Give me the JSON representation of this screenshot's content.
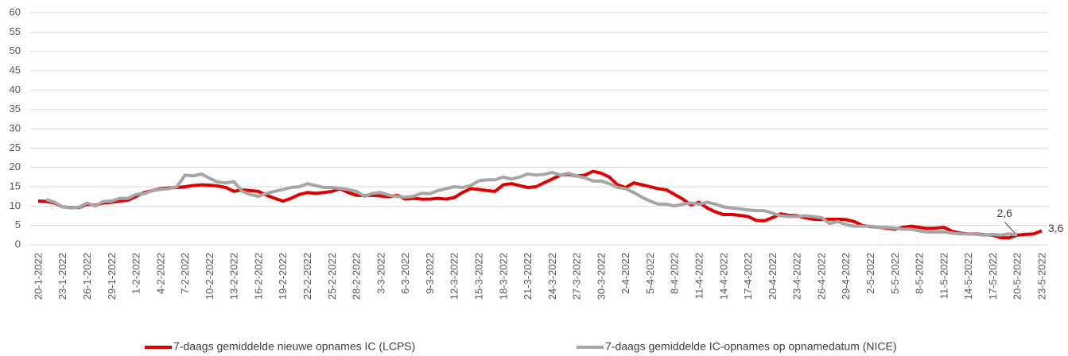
{
  "chart_data": {
    "type": "line",
    "categories": [
      "20-1-2022",
      null,
      null,
      "23-1-2022",
      null,
      null,
      "26-1-2022",
      null,
      null,
      "29-1-2022",
      null,
      null,
      "1-2-2022",
      null,
      null,
      "4-2-2022",
      null,
      null,
      "7-2-2022",
      null,
      null,
      "10-2-2022",
      null,
      null,
      "13-2-2022",
      null,
      null,
      "16-2-2022",
      null,
      null,
      "19-2-2022",
      null,
      null,
      "22-2-2022",
      null,
      null,
      "25-2-2022",
      null,
      null,
      "28-2-2022",
      null,
      null,
      "3-3-2022",
      null,
      null,
      "6-3-2022",
      null,
      null,
      "9-3-2022",
      null,
      null,
      "12-3-2022",
      null,
      null,
      "15-3-2022",
      null,
      null,
      "18-3-2022",
      null,
      null,
      "21-3-2022",
      null,
      null,
      "24-3-2022",
      null,
      null,
      "27-3-2022",
      null,
      null,
      "30-3-2022",
      null,
      null,
      "2-4-2022",
      null,
      null,
      "5-4-2022",
      null,
      null,
      "8-4-2022",
      null,
      null,
      "11-4-2022",
      null,
      null,
      "14-4-2022",
      null,
      null,
      "17-4-2022",
      null,
      null,
      "20-4-2022",
      null,
      null,
      "23-4-2022",
      null,
      null,
      "26-4-2022",
      null,
      null,
      "29-4-2022",
      null,
      null,
      "2-5-2022",
      null,
      null,
      "5-5-2022",
      null,
      null,
      "8-5-2022",
      null,
      null,
      "11-5-2022",
      null,
      null,
      "14-5-2022",
      null,
      null,
      "17-5-2022",
      null,
      null,
      "20-5-2022",
      null,
      null,
      "23-5-2022"
    ],
    "series": [
      {
        "name": "7-daags gemiddelde nieuwe opnames IC (LCPS)",
        "color": "#e00000",
        "values": [
          11.3,
          11.2,
          10.8,
          9.8,
          9.6,
          9.6,
          10.5,
          10.2,
          10.8,
          11.0,
          11.3,
          11.5,
          12.5,
          13.5,
          14.0,
          14.5,
          14.7,
          14.8,
          15.0,
          15.3,
          15.5,
          15.4,
          15.2,
          14.8,
          13.8,
          14.2,
          14.0,
          13.8,
          12.8,
          12.0,
          11.3,
          12.0,
          13.0,
          13.5,
          13.3,
          13.5,
          13.8,
          14.5,
          13.5,
          12.8,
          12.7,
          12.8,
          12.6,
          12.4,
          12.8,
          11.8,
          12.0,
          11.8,
          11.8,
          12.0,
          11.8,
          12.2,
          13.5,
          14.5,
          14.3,
          14.0,
          13.8,
          15.5,
          15.8,
          15.3,
          14.8,
          15.0,
          16.0,
          17.0,
          18.0,
          18.2,
          17.8,
          18.0,
          19.0,
          18.5,
          17.5,
          15.5,
          14.8,
          16.0,
          15.5,
          15.0,
          14.5,
          14.2,
          13.0,
          11.8,
          10.3,
          11.0,
          9.5,
          8.5,
          7.8,
          7.8,
          7.6,
          7.3,
          6.3,
          6.2,
          7.0,
          8.0,
          7.6,
          7.5,
          7.0,
          6.6,
          6.5,
          6.6,
          6.6,
          6.5,
          6.0,
          5.0,
          4.7,
          4.5,
          4.3,
          4.0,
          4.5,
          4.8,
          4.5,
          4.2,
          4.3,
          4.5,
          3.5,
          3.0,
          2.8,
          2.8,
          2.6,
          2.5,
          1.8,
          1.8,
          2.5,
          2.7,
          2.8,
          3.6
        ],
        "value_labels": [
          null,
          null,
          null,
          null,
          null,
          null,
          null,
          null,
          null,
          null,
          null,
          null,
          null,
          null,
          null,
          null,
          null,
          null,
          null,
          null,
          null,
          null,
          null,
          null,
          null,
          null,
          null,
          null,
          null,
          null,
          null,
          null,
          null,
          null,
          null,
          null,
          null,
          null,
          null,
          null,
          null,
          null,
          null,
          null,
          null,
          null,
          null,
          null,
          null,
          null,
          null,
          null,
          null,
          null,
          null,
          null,
          null,
          null,
          null,
          null,
          null,
          null,
          null,
          null,
          null,
          null,
          null,
          null,
          null,
          null,
          null,
          null,
          null,
          null,
          null,
          null,
          null,
          null,
          null,
          null,
          null,
          null,
          null,
          null,
          null,
          null,
          null,
          null,
          null,
          null,
          null,
          null,
          null,
          null,
          null,
          null,
          null,
          null,
          null,
          null,
          null,
          null,
          null,
          null,
          null,
          null,
          null,
          null,
          null,
          null,
          null,
          null,
          null,
          null,
          null,
          null,
          null,
          null,
          null,
          null,
          null,
          null,
          null,
          "3,6"
        ]
      },
      {
        "name": "7-daags gemiddelde IC-opnames op opnamedatum (NICE)",
        "color": "#a6a6a6",
        "values": [
          null,
          11.7,
          11.0,
          9.8,
          9.5,
          9.7,
          10.8,
          10.0,
          11.2,
          11.3,
          12.0,
          12.0,
          13.0,
          13.2,
          14.0,
          14.3,
          14.5,
          15.0,
          18.0,
          17.8,
          18.3,
          17.2,
          16.2,
          16.0,
          16.3,
          13.8,
          13.0,
          12.5,
          13.3,
          13.8,
          14.3,
          14.8,
          15.0,
          15.8,
          15.3,
          14.8,
          14.8,
          14.6,
          14.3,
          13.8,
          12.5,
          13.3,
          13.5,
          12.8,
          12.5,
          12.3,
          12.5,
          13.3,
          13.2,
          14.0,
          14.5,
          15.0,
          14.8,
          15.3,
          16.5,
          16.8,
          16.8,
          17.5,
          17.0,
          17.5,
          18.3,
          18.0,
          18.2,
          18.7,
          18.0,
          18.5,
          17.8,
          17.3,
          16.5,
          16.5,
          15.8,
          14.8,
          14.5,
          13.5,
          12.3,
          11.3,
          10.5,
          10.5,
          10.0,
          10.5,
          10.8,
          10.5,
          11.0,
          10.5,
          9.8,
          9.5,
          9.3,
          9.0,
          8.8,
          8.8,
          8.2,
          7.5,
          7.3,
          7.3,
          7.5,
          7.3,
          7.0,
          5.5,
          6.0,
          5.2,
          4.8,
          4.8,
          4.8,
          4.5,
          4.5,
          4.3,
          4.0,
          4.0,
          3.6,
          3.3,
          3.3,
          3.3,
          3.0,
          2.8,
          2.8,
          2.7,
          2.5,
          2.7,
          2.5,
          2.8,
          2.6,
          null,
          null,
          null
        ],
        "value_labels": [
          null,
          null,
          null,
          null,
          null,
          null,
          null,
          null,
          null,
          null,
          null,
          null,
          null,
          null,
          null,
          null,
          null,
          null,
          null,
          null,
          null,
          null,
          null,
          null,
          null,
          null,
          null,
          null,
          null,
          null,
          null,
          null,
          null,
          null,
          null,
          null,
          null,
          null,
          null,
          null,
          null,
          null,
          null,
          null,
          null,
          null,
          null,
          null,
          null,
          null,
          null,
          null,
          null,
          null,
          null,
          null,
          null,
          null,
          null,
          null,
          null,
          null,
          null,
          null,
          null,
          null,
          null,
          null,
          null,
          null,
          null,
          null,
          null,
          null,
          null,
          null,
          null,
          null,
          null,
          null,
          null,
          null,
          null,
          null,
          null,
          null,
          null,
          null,
          null,
          null,
          null,
          null,
          null,
          null,
          null,
          null,
          null,
          null,
          null,
          null,
          null,
          null,
          null,
          null,
          null,
          null,
          null,
          null,
          null,
          null,
          null,
          null,
          null,
          null,
          null,
          null,
          null,
          null,
          null,
          null,
          "2,6",
          null,
          null,
          null
        ]
      }
    ],
    "ylim": [
      0,
      60
    ],
    "yticks": [
      0,
      5,
      10,
      15,
      20,
      25,
      30,
      35,
      40,
      45,
      50,
      55,
      60
    ],
    "grid": true,
    "legend": "bottom"
  }
}
